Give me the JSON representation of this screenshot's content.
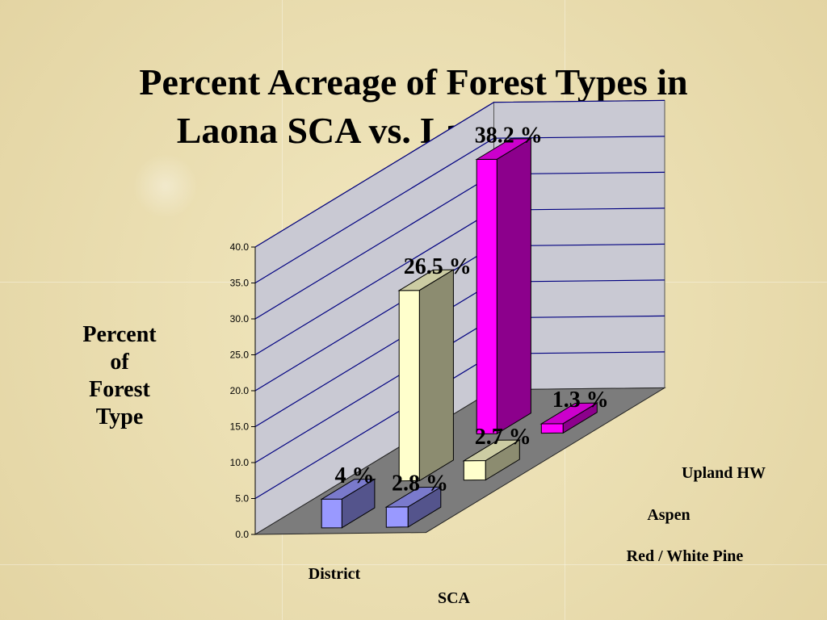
{
  "title_lines": [
    "Percent Acreage of Forest Types in",
    "Laona SCA vs. Laona District"
  ],
  "ylabel_lines": [
    "Percent",
    "of",
    "Forest",
    "Type"
  ],
  "chart_data": {
    "type": "bar",
    "subtype": "3d-column",
    "categories": [
      "District",
      "SCA"
    ],
    "series": [
      {
        "name": "Red / White Pine",
        "values": [
          4,
          2.8
        ],
        "labels": [
          "4 %",
          "2.8 %"
        ],
        "color": "#9999ff"
      },
      {
        "name": "Aspen",
        "values": [
          26.5,
          2.7
        ],
        "labels": [
          "26.5 %",
          "2.7 %"
        ],
        "color": "#ffffcc"
      },
      {
        "name": "Upland HW",
        "values": [
          38.2,
          1.3
        ],
        "labels": [
          "38.2 %",
          "1.3 %"
        ],
        "color": "#ff00ff"
      }
    ],
    "ylim": [
      0,
      40
    ],
    "yticks": [
      "0.0",
      "5.0",
      "10.0",
      "15.0",
      "20.0",
      "25.0",
      "30.0",
      "35.0",
      "40.0"
    ],
    "grid": true,
    "legend_position": "right"
  }
}
